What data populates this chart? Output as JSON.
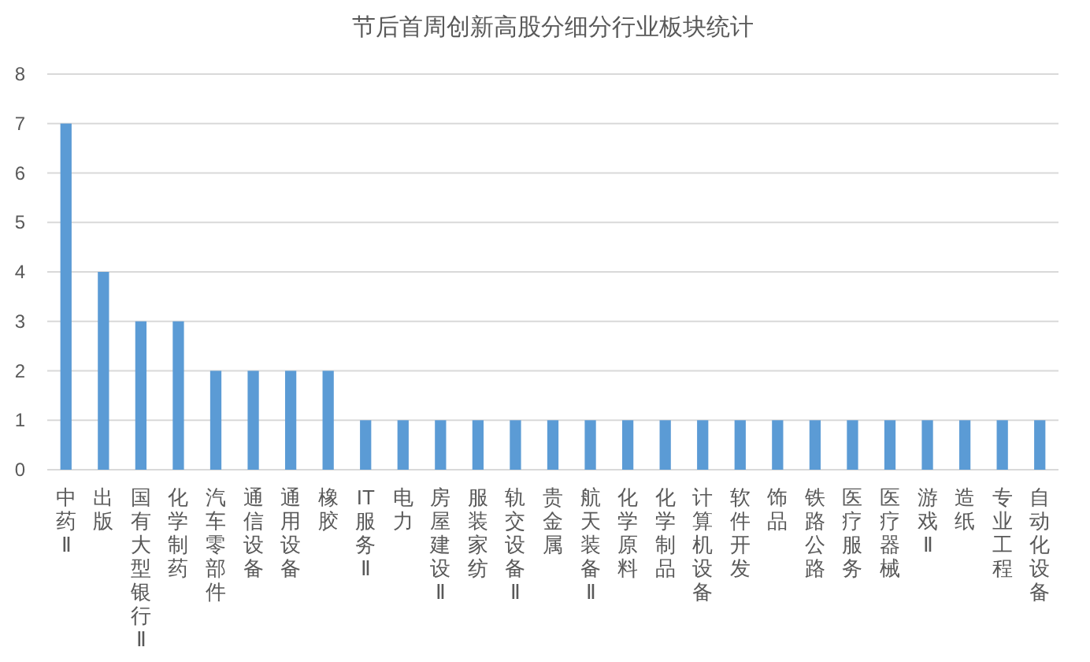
{
  "chart_data": {
    "type": "bar",
    "title": "节后首周创新高股分细分行业板块统计",
    "categories": [
      "中药Ⅱ",
      "出版",
      "国有大型银行Ⅱ",
      "化学制药",
      "汽车零部件",
      "通信设备",
      "通用设备",
      "橡胶",
      "IT服务Ⅱ",
      "电力",
      "房屋建设Ⅱ",
      "服装家纺",
      "轨交设备Ⅱ",
      "贵金属",
      "航天装备Ⅱ",
      "化学原料",
      "化学制品",
      "计算机设备",
      "软件开发",
      "饰品",
      "铁路公路",
      "医疗服务",
      "医疗器械",
      "游戏Ⅱ",
      "造纸",
      "专业工程",
      "自动化设备"
    ],
    "values": [
      7,
      4,
      3,
      3,
      2,
      2,
      2,
      2,
      1,
      1,
      1,
      1,
      1,
      1,
      1,
      1,
      1,
      1,
      1,
      1,
      1,
      1,
      1,
      1,
      1,
      1,
      1
    ],
    "color": "#5b9bd5",
    "ylim": [
      0,
      8
    ],
    "yticks": [
      0,
      1,
      2,
      3,
      4,
      5,
      6,
      7,
      8
    ],
    "grid": "y"
  }
}
